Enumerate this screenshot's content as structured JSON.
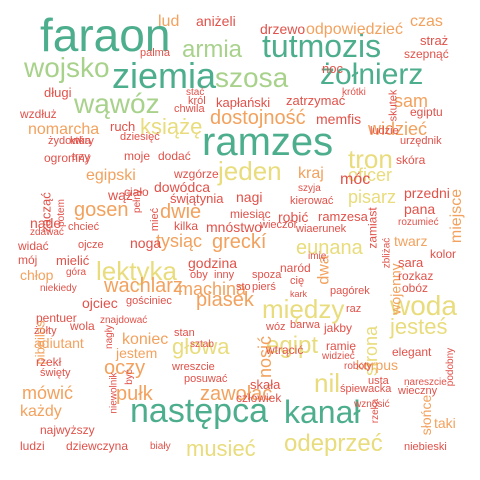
{
  "palette": {
    "green": "#4dae8e",
    "light_green": "#a8d28c",
    "yellow": "#e8dc7c",
    "orange": "#f2a25e",
    "red": "#e0524a"
  },
  "words": [
    {
      "text": "faraon",
      "color": "green",
      "weight": 1.0
    },
    {
      "text": "ziemia",
      "color": "green",
      "weight": 0.9
    },
    {
      "text": "tutmozis",
      "color": "green",
      "weight": 0.8
    },
    {
      "text": "żołnierz",
      "color": "green",
      "weight": 0.8
    },
    {
      "text": "ramzes",
      "color": "green",
      "weight": 0.95
    },
    {
      "text": "następca",
      "color": "green",
      "weight": 0.95
    },
    {
      "text": "kanał",
      "color": "green",
      "weight": 0.9
    },
    {
      "text": "szosa",
      "color": "light_green",
      "weight": 0.7
    },
    {
      "text": "wojsko",
      "color": "light_green",
      "weight": 0.7
    },
    {
      "text": "wąwóz",
      "color": "light_green",
      "weight": 0.65
    },
    {
      "text": "armia",
      "color": "light_green",
      "weight": 0.6
    },
    {
      "text": "jeden",
      "color": "yellow",
      "weight": 0.65
    },
    {
      "text": "tron",
      "color": "yellow",
      "weight": 0.6
    },
    {
      "text": "lektyka",
      "color": "yellow",
      "weight": 0.6
    },
    {
      "text": "woda",
      "color": "yellow",
      "weight": 0.6
    },
    {
      "text": "między",
      "color": "yellow",
      "weight": 0.55
    },
    {
      "text": "odeprzeć",
      "color": "yellow",
      "weight": 0.55
    },
    {
      "text": "musieć",
      "color": "yellow",
      "weight": 0.5
    },
    {
      "text": "jesteś",
      "color": "yellow",
      "weight": 0.5
    },
    {
      "text": "egipt",
      "color": "yellow",
      "weight": 0.5
    },
    {
      "text": "głowa",
      "color": "yellow",
      "weight": 0.45
    },
    {
      "text": "eunana",
      "color": "yellow",
      "weight": 0.45
    },
    {
      "text": "książę",
      "color": "yellow",
      "weight": 0.45
    },
    {
      "text": "dostojność",
      "color": "orange",
      "weight": 0.45
    },
    {
      "text": "zawołać",
      "color": "orange",
      "weight": 0.4
    },
    {
      "text": "widzieć",
      "color": "orange",
      "weight": 0.4
    },
    {
      "text": "piasek",
      "color": "orange",
      "weight": 0.4
    },
    {
      "text": "wachlarz",
      "color": "orange",
      "weight": 0.4
    },
    {
      "text": "gosen",
      "color": "orange",
      "weight": 0.4
    },
    {
      "text": "oficer",
      "color": "yellow",
      "weight": 0.4
    },
    {
      "text": "pisarz",
      "color": "yellow",
      "weight": 0.4
    },
    {
      "text": "odpowiedzieć",
      "color": "orange",
      "weight": 0.3
    },
    {
      "text": "mówić",
      "color": "orange",
      "weight": 0.35
    },
    {
      "text": "pułk",
      "color": "orange",
      "weight": 0.35
    },
    {
      "text": "oczy",
      "color": "orange",
      "weight": 0.35
    },
    {
      "text": "strona",
      "color": "yellow",
      "weight": 0.35
    },
    {
      "text": "nil",
      "color": "yellow",
      "weight": 0.4
    },
    {
      "text": "nosić",
      "color": "orange",
      "weight": 0.35
    },
    {
      "text": "greckí",
      "color": "orange",
      "weight": 0.35
    },
    {
      "text": "dwie",
      "color": "orange",
      "weight": 0.35
    },
    {
      "text": "tysiąc",
      "color": "orange",
      "weight": 0.3
    },
    {
      "text": "machina",
      "color": "orange",
      "weight": 0.3
    },
    {
      "text": "nomarcha",
      "color": "orange",
      "weight": 0.3
    },
    {
      "text": "sam",
      "color": "orange",
      "weight": 0.3
    },
    {
      "text": "kraj",
      "color": "orange",
      "weight": 0.3
    },
    {
      "text": "miejsce",
      "color": "orange",
      "weight": 0.3
    },
    {
      "text": "czas",
      "color": "orange",
      "weight": 0.28
    },
    {
      "text": "lud",
      "color": "orange",
      "weight": 0.28
    },
    {
      "text": "egipski",
      "color": "orange",
      "weight": 0.28
    },
    {
      "text": "wojenny",
      "color": "orange",
      "weight": 0.28
    },
    {
      "text": "każdy",
      "color": "orange",
      "weight": 0.28
    },
    {
      "text": "jestem",
      "color": "orange",
      "weight": 0.25
    },
    {
      "text": "koniec",
      "color": "orange",
      "weight": 0.25
    },
    {
      "text": "twarz",
      "color": "orange",
      "weight": 0.25
    },
    {
      "text": "ojciec",
      "color": "red",
      "weight": 0.25
    },
    {
      "text": "drzewo",
      "color": "red",
      "weight": 0.22
    },
    {
      "text": "aniżeli",
      "color": "red",
      "weight": 0.22
    },
    {
      "text": "palma",
      "color": "red",
      "weight": 0.18
    },
    {
      "text": "straż",
      "color": "red",
      "weight": 0.2
    },
    {
      "text": "szepnąć",
      "color": "red",
      "weight": 0.18
    },
    {
      "text": "noc",
      "color": "red",
      "weight": 0.2
    },
    {
      "text": "długi",
      "color": "red",
      "weight": 0.2
    },
    {
      "text": "stać",
      "color": "red",
      "weight": 0.15
    },
    {
      "text": "krótki",
      "color": "red",
      "weight": 0.15
    },
    {
      "text": "król",
      "color": "red",
      "weight": 0.15
    },
    {
      "text": "chwila",
      "color": "red",
      "weight": 0.15
    },
    {
      "text": "kapłański",
      "color": "red",
      "weight": 0.2
    },
    {
      "text": "zatrzymać",
      "color": "red",
      "weight": 0.2
    },
    {
      "text": "egiptu",
      "color": "red",
      "weight": 0.18
    },
    {
      "text": "wzdłuż",
      "color": "red",
      "weight": 0.18
    },
    {
      "text": "żydowka",
      "color": "red",
      "weight": 0.15
    },
    {
      "text": "ruch",
      "color": "red",
      "weight": 0.2
    },
    {
      "text": "memfis",
      "color": "red",
      "weight": 0.22
    },
    {
      "text": "ludzie",
      "color": "red",
      "weight": 0.18
    },
    {
      "text": "skutek",
      "color": "red",
      "weight": 0.18
    },
    {
      "text": "urzędnik",
      "color": "red",
      "weight": 0.18
    },
    {
      "text": "który",
      "color": "red",
      "weight": 0.18
    },
    {
      "text": "dziesięć",
      "color": "red",
      "weight": 0.18
    },
    {
      "text": "ogromny",
      "color": "red",
      "weight": 0.2
    },
    {
      "text": "trzy",
      "color": "red",
      "weight": 0.18
    },
    {
      "text": "moje",
      "color": "red",
      "weight": 0.2
    },
    {
      "text": "dodać",
      "color": "red",
      "weight": 0.2
    },
    {
      "text": "skóra",
      "color": "red",
      "weight": 0.2
    },
    {
      "text": "wzgórze",
      "color": "red",
      "weight": 0.2
    },
    {
      "text": "szyja",
      "color": "red",
      "weight": 0.15
    },
    {
      "text": "móc",
      "color": "red",
      "weight": 0.25
    },
    {
      "text": "ciało",
      "color": "red",
      "weight": 0.2
    },
    {
      "text": "dowódca",
      "color": "red",
      "weight": 0.22
    },
    {
      "text": "świątynia",
      "color": "red",
      "weight": 0.22
    },
    {
      "text": "nagi",
      "color": "red",
      "weight": 0.22
    },
    {
      "text": "kierować",
      "color": "red",
      "weight": 0.15
    },
    {
      "text": "przedni",
      "color": "red",
      "weight": 0.22
    },
    {
      "text": "zacząć",
      "color": "red",
      "weight": 0.22
    },
    {
      "text": "potem",
      "color": "red",
      "weight": 0.15
    },
    {
      "text": "wąż",
      "color": "red",
      "weight": 0.2
    },
    {
      "text": "pełny",
      "color": "red",
      "weight": 0.15
    },
    {
      "text": "kilka",
      "color": "red",
      "weight": 0.18
    },
    {
      "text": "mnóstwo",
      "color": "red",
      "weight": 0.22
    },
    {
      "text": "miesiąc",
      "color": "red",
      "weight": 0.2
    },
    {
      "text": "robić",
      "color": "red",
      "weight": 0.22
    },
    {
      "text": "ramzesa",
      "color": "red",
      "weight": 0.2
    },
    {
      "text": "pana",
      "color": "red",
      "weight": 0.2
    },
    {
      "text": "rozumieć",
      "color": "red",
      "weight": 0.15
    },
    {
      "text": "nade",
      "color": "red",
      "weight": 0.2
    },
    {
      "text": "zdawać",
      "color": "red",
      "weight": 0.15
    },
    {
      "text": "chcieć",
      "color": "red",
      "weight": 0.15
    },
    {
      "text": "mieć",
      "color": "red",
      "weight": 0.18
    },
    {
      "text": "widać",
      "color": "red",
      "weight": 0.2
    },
    {
      "text": "ojcze",
      "color": "red",
      "weight": 0.15
    },
    {
      "text": "noga",
      "color": "red",
      "weight": 0.22
    },
    {
      "text": "wieczór",
      "color": "red",
      "weight": 0.18
    },
    {
      "text": "wiaerunek",
      "color": "red",
      "weight": 0.15
    },
    {
      "text": "zamiast",
      "color": "red",
      "weight": 0.18
    },
    {
      "text": "mój",
      "color": "red",
      "weight": 0.2
    },
    {
      "text": "mielić",
      "color": "red",
      "weight": 0.2
    },
    {
      "text": "chłop",
      "color": "orange",
      "weight": 0.25
    },
    {
      "text": "góra",
      "color": "red",
      "weight": 0.15
    },
    {
      "text": "godzina",
      "color": "red",
      "weight": 0.22
    },
    {
      "text": "oby",
      "color": "red",
      "weight": 0.15
    },
    {
      "text": "inny",
      "color": "red",
      "weight": 0.15
    },
    {
      "text": "spoza",
      "color": "red",
      "weight": 0.15
    },
    {
      "text": "naród",
      "color": "red",
      "weight": 0.18
    },
    {
      "text": "dwa",
      "color": "orange",
      "weight": 0.25
    },
    {
      "text": "zbliżać",
      "color": "red",
      "weight": 0.15
    },
    {
      "text": "kolor",
      "color": "red",
      "weight": 0.2
    },
    {
      "text": "sara",
      "color": "red",
      "weight": 0.22
    },
    {
      "text": "rozkaz",
      "color": "red",
      "weight": 0.2
    },
    {
      "text": "obóz",
      "color": "red",
      "weight": 0.2
    },
    {
      "text": "niekiedy",
      "color": "red",
      "weight": 0.15
    },
    {
      "text": "pierś",
      "color": "red",
      "weight": 0.15
    },
    {
      "text": "cię",
      "color": "red",
      "weight": 0.15
    },
    {
      "text": "kark",
      "color": "red",
      "weight": 0.15
    },
    {
      "text": "pagórek",
      "color": "red",
      "weight": 0.15
    },
    {
      "text": "imię",
      "color": "red",
      "weight": 0.15
    },
    {
      "text": "sto",
      "color": "red",
      "weight": 0.15
    },
    {
      "text": "gościniec",
      "color": "red",
      "weight": 0.15
    },
    {
      "text": "pentuer",
      "color": "red",
      "weight": 0.18
    },
    {
      "text": "znajdować",
      "color": "red",
      "weight": 0.15
    },
    {
      "text": "żółty",
      "color": "red",
      "weight": 0.15
    },
    {
      "text": "wola",
      "color": "red",
      "weight": 0.18
    },
    {
      "text": "stan",
      "color": "red",
      "weight": 0.15
    },
    {
      "text": "sztab",
      "color": "red",
      "weight": 0.15
    },
    {
      "text": "wóz",
      "color": "red",
      "weight": 0.15
    },
    {
      "text": "barwa",
      "color": "red",
      "weight": 0.15
    },
    {
      "text": "jakby",
      "color": "red",
      "weight": 0.18
    },
    {
      "text": "raz",
      "color": "red",
      "weight": 0.15
    },
    {
      "text": "pibailos",
      "color": "orange",
      "weight": 0.2
    },
    {
      "text": "adiutant",
      "color": "orange",
      "weight": 0.22
    },
    {
      "text": "nagły",
      "color": "red",
      "weight": 0.15
    },
    {
      "text": "wtrącić",
      "color": "red",
      "weight": 0.18
    },
    {
      "text": "ramię",
      "color": "red",
      "weight": 0.18
    },
    {
      "text": "widzieć",
      "color": "red",
      "weight": 0.15
    },
    {
      "text": "elegant",
      "color": "red",
      "weight": 0.18
    },
    {
      "text": "korpus",
      "color": "orange",
      "weight": 0.25
    },
    {
      "text": "rzekł",
      "color": "red",
      "weight": 0.18
    },
    {
      "text": "święty",
      "color": "red",
      "weight": 0.15
    },
    {
      "text": "roboty",
      "color": "red",
      "weight": 0.15
    },
    {
      "text": "wreszcie",
      "color": "red",
      "weight": 0.18
    },
    {
      "text": "posuwać",
      "color": "red",
      "weight": 0.15
    },
    {
      "text": "usta",
      "color": "red",
      "weight": 0.15
    },
    {
      "text": "nareszcie",
      "color": "red",
      "weight": 0.15
    },
    {
      "text": "podobny",
      "color": "red",
      "weight": 0.15
    },
    {
      "text": "być",
      "color": "red",
      "weight": 0.15
    },
    {
      "text": "skała",
      "color": "red",
      "weight": 0.2
    },
    {
      "text": "śpiewacka",
      "color": "red",
      "weight": 0.15
    },
    {
      "text": "wieczny",
      "color": "red",
      "weight": 0.15
    },
    {
      "text": "człowiek",
      "color": "red",
      "weight": 0.18
    },
    {
      "text": "niewolnik",
      "color": "red",
      "weight": 0.15
    },
    {
      "text": "wznosić",
      "color": "red",
      "weight": 0.15
    },
    {
      "text": "rzeka",
      "color": "red",
      "weight": 0.15
    },
    {
      "text": "słońce",
      "color": "orange",
      "weight": 0.22
    },
    {
      "text": "taki",
      "color": "orange",
      "weight": 0.22
    },
    {
      "text": "najwyższy",
      "color": "red",
      "weight": 0.18
    },
    {
      "text": "ludzi",
      "color": "red",
      "weight": 0.18
    },
    {
      "text": "dziewczyna",
      "color": "red",
      "weight": 0.2
    },
    {
      "text": "biały",
      "color": "red",
      "weight": 0.15
    },
    {
      "text": "niebieski",
      "color": "red",
      "weight": 0.15
    }
  ]
}
